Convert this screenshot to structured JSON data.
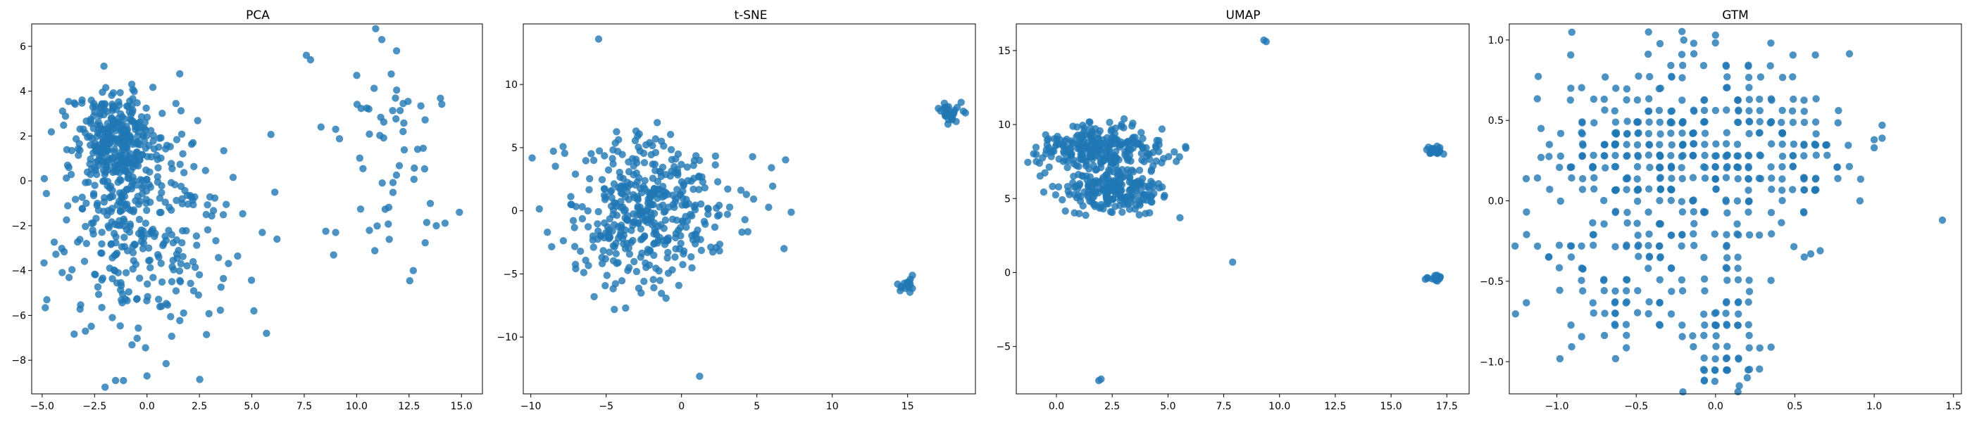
{
  "figure": {
    "marker_color": "#1f77b4",
    "frame_color": "#000000",
    "background": "#ffffff"
  },
  "chart_data": [
    {
      "type": "scatter",
      "title": "PCA",
      "xlim": [
        -5.5,
        16.0
      ],
      "ylim": [
        -9.5,
        7.0
      ],
      "xticks": [
        -5.0,
        -2.5,
        0.0,
        2.5,
        5.0,
        7.5,
        10.0,
        12.5,
        15.0
      ],
      "xtick_labels": [
        "−5.0",
        "−2.5",
        "0.0",
        "2.5",
        "5.0",
        "7.5",
        "10.0",
        "12.5",
        "15.0"
      ],
      "yticks": [
        -8,
        -6,
        -4,
        -2,
        0,
        2,
        4,
        6
      ],
      "ytick_labels": [
        "−8",
        "−6",
        "−4",
        "−2",
        "0",
        "2",
        "4",
        "6"
      ],
      "clusters": [
        {
          "cx": -1.5,
          "cy": 1.8,
          "sx": 1.0,
          "sy": 1.1,
          "n": 280
        },
        {
          "cx": -1.0,
          "cy": -1.5,
          "sx": 1.6,
          "sy": 2.5,
          "n": 260
        },
        {
          "cx": 1.5,
          "cy": -2.5,
          "sx": 1.8,
          "sy": 2.6,
          "n": 90
        },
        {
          "cx": 11.5,
          "cy": 2.5,
          "sx": 1.2,
          "sy": 2.0,
          "n": 40
        },
        {
          "cx": 12.0,
          "cy": -1.5,
          "sx": 1.5,
          "sy": 1.3,
          "n": 15
        }
      ],
      "points": [
        [
          -4.9,
          0.1
        ],
        [
          -2.0,
          -9.2
        ],
        [
          -1.5,
          -8.9
        ],
        [
          0.0,
          -8.7
        ],
        [
          7.6,
          5.6
        ],
        [
          7.8,
          5.4
        ],
        [
          9.0,
          2.3
        ],
        [
          8.3,
          2.4
        ],
        [
          8.9,
          -3.3
        ],
        [
          9.0,
          -2.3
        ],
        [
          12.7,
          -4.0
        ],
        [
          14.9,
          -1.4
        ],
        [
          13.8,
          -2.0
        ],
        [
          11.2,
          6.3
        ],
        [
          5.7,
          -6.8
        ],
        [
          5.1,
          -5.8
        ],
        [
          6.2,
          -2.6
        ],
        [
          5.5,
          -2.3
        ]
      ]
    },
    {
      "type": "scatter",
      "title": "t-SNE",
      "xlim": [
        -10.5,
        19.5
      ],
      "ylim": [
        -14.5,
        14.8
      ],
      "xticks": [
        -10,
        -5,
        0,
        5,
        10,
        15
      ],
      "xtick_labels": [
        "−10",
        "−5",
        "0",
        "5",
        "10",
        "15"
      ],
      "yticks": [
        -10,
        -5,
        0,
        5,
        10
      ],
      "ytick_labels": [
        "−10",
        "−5",
        "0",
        "5",
        "10"
      ],
      "clusters": [
        {
          "cx": -2.0,
          "cy": 0.0,
          "sx": 2.8,
          "sy": 3.0,
          "n": 420
        },
        {
          "cx": 17.8,
          "cy": 7.9,
          "sx": 0.5,
          "sy": 0.4,
          "n": 30
        },
        {
          "cx": 15.0,
          "cy": -5.9,
          "sx": 0.3,
          "sy": 0.3,
          "n": 15
        }
      ],
      "points": [
        [
          -5.5,
          13.6
        ],
        [
          1.2,
          -13.1
        ],
        [
          6.8,
          -3.0
        ],
        [
          -8.9,
          -1.7
        ],
        [
          -5.8,
          -6.8
        ]
      ]
    },
    {
      "type": "scatter",
      "title": "UMAP",
      "xlim": [
        -1.8,
        18.5
      ],
      "ylim": [
        -8.2,
        16.8
      ],
      "xticks": [
        0.0,
        2.5,
        5.0,
        7.5,
        10.0,
        12.5,
        15.0,
        17.5
      ],
      "xtick_labels": [
        "0.0",
        "2.5",
        "5.0",
        "7.5",
        "10.0",
        "12.5",
        "15.0",
        "17.5"
      ],
      "yticks": [
        -5,
        0,
        5,
        10,
        15
      ],
      "ytick_labels": [
        "−5",
        "0",
        "5",
        "10",
        "15"
      ],
      "clusters": [
        {
          "cx": 2.0,
          "cy": 8.3,
          "sx": 1.3,
          "sy": 0.9,
          "n": 260
        },
        {
          "cx": 2.5,
          "cy": 5.5,
          "sx": 1.2,
          "sy": 0.7,
          "n": 200
        },
        {
          "cx": 17.0,
          "cy": 8.3,
          "sx": 0.2,
          "sy": 0.2,
          "n": 25
        },
        {
          "cx": 17.0,
          "cy": -0.4,
          "sx": 0.2,
          "sy": 0.1,
          "n": 20
        }
      ],
      "points": [
        [
          9.3,
          15.7
        ],
        [
          9.4,
          15.6
        ],
        [
          7.9,
          0.7
        ],
        [
          1.9,
          -7.3
        ],
        [
          2.0,
          -7.2
        ],
        [
          -0.9,
          7.5
        ],
        [
          5.8,
          8.4
        ],
        [
          4.8,
          7.7
        ]
      ]
    },
    {
      "type": "scatter",
      "title": "GTM",
      "xlim": [
        -1.3,
        1.55
      ],
      "ylim": [
        -1.2,
        1.1
      ],
      "xticks": [
        -1.0,
        -0.5,
        0.0,
        0.5,
        1.0,
        1.5
      ],
      "xtick_labels": [
        "−1.0",
        "−0.5",
        "0.0",
        "0.5",
        "1.0",
        "1.5"
      ],
      "yticks": [
        -1.0,
        -0.5,
        0.0,
        0.5,
        1.0
      ],
      "ytick_labels": [
        "−1.0",
        "−0.5",
        "0.0",
        "0.5",
        "1.0"
      ],
      "clusters": [
        {
          "cx": -0.2,
          "cy": 0.3,
          "sx": 0.45,
          "sy": 0.35,
          "n": 380,
          "grid": 0.07
        },
        {
          "cx": -0.6,
          "cy": -0.6,
          "sx": 0.25,
          "sy": 0.2,
          "n": 60,
          "grid": 0.07
        },
        {
          "cx": 0.05,
          "cy": -0.8,
          "sx": 0.12,
          "sy": 0.2,
          "n": 60,
          "grid": 0.07
        },
        {
          "cx": 0.55,
          "cy": 0.3,
          "sx": 0.15,
          "sy": 0.2,
          "n": 40,
          "grid": 0.07
        }
      ],
      "points": [
        [
          1.43,
          -0.12
        ],
        [
          1.0,
          0.38
        ],
        [
          1.0,
          0.33
        ],
        [
          1.05,
          0.47
        ],
        [
          1.05,
          0.39
        ],
        [
          0.6,
          -0.33
        ],
        [
          0.66,
          -0.31
        ],
        [
          -1.1,
          0.45
        ],
        [
          -1.1,
          0.27
        ],
        [
          0.15,
          -1.15
        ],
        [
          0.2,
          -1.1
        ],
        [
          -0.2,
          1.0
        ],
        [
          0.0,
          1.03
        ]
      ]
    }
  ]
}
